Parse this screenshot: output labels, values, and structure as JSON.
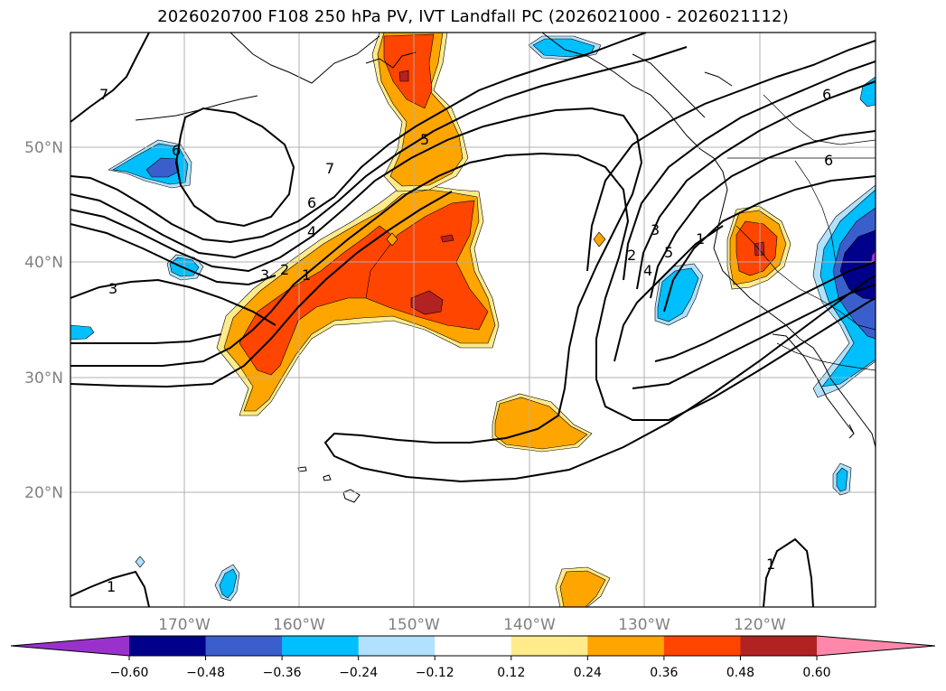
{
  "title": "2026020700 F108 250 hPa PV, IVT Landfall PC (2026021000 - 2026021112)",
  "lon_labels": [
    "170°W",
    "160°W",
    "150°W",
    "140°W",
    "130°W",
    "120°W"
  ],
  "lat_labels": [
    "50°N",
    "40°N",
    "30°N",
    "20°N"
  ],
  "colorbar": {
    "ticks": [
      "−0.60",
      "−0.48",
      "−0.36",
      "−0.24",
      "−0.12",
      "0.12",
      "0.24",
      "0.36",
      "0.48",
      "0.60"
    ],
    "colors": [
      "#9932cc",
      "#00008b",
      "#3a5fcd",
      "#00bfff",
      "#b0e2ff",
      "#ffffff",
      "#ffeb8c",
      "#ffa500",
      "#ff4500",
      "#b22222",
      "#ff88aa"
    ]
  },
  "contour_labels": [
    "7",
    "6",
    "5",
    "4",
    "3",
    "2",
    "1",
    "7",
    "6",
    "5",
    "4",
    "3",
    "2",
    "1",
    "1",
    "1",
    "6",
    "6",
    "3"
  ]
}
